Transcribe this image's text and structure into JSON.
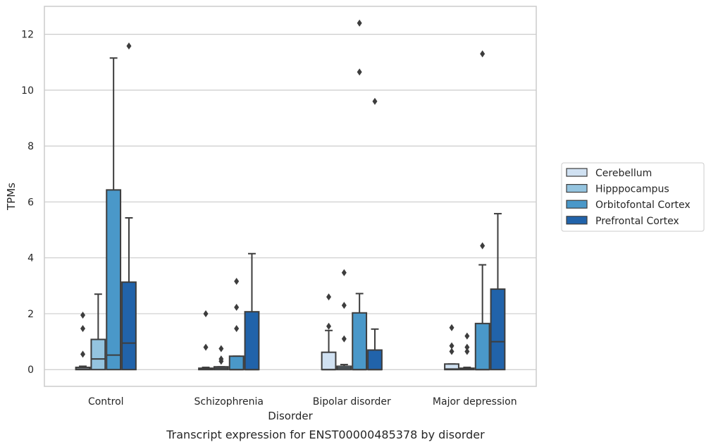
{
  "chart_data": {
    "type": "box",
    "title": "",
    "caption": "Transcript expression for ENST00000485378 by disorder",
    "xlabel": "Disorder",
    "ylabel": "TPMs",
    "ylim": [
      -0.6,
      13
    ],
    "yticks": [
      0,
      2,
      4,
      6,
      8,
      10,
      12
    ],
    "grid": "horizontal",
    "legend_position": "right",
    "categories": [
      "Control",
      "Schizophrenia",
      "Bipolar disorder",
      "Major depression"
    ],
    "series": [
      {
        "name": "Cerebellum",
        "color": "#d0e1f2",
        "boxes": [
          {
            "q1": 0,
            "median": 0.02,
            "q3": 0.08,
            "whisker_low": 0,
            "whisker_high": 0.12,
            "outliers": [
              0.55,
              1.47,
              1.95
            ]
          },
          {
            "q1": 0,
            "median": 0.01,
            "q3": 0.05,
            "whisker_low": 0,
            "whisker_high": 0.08,
            "outliers": [
              0.8,
              2.0
            ]
          },
          {
            "q1": 0,
            "median": 0.0,
            "q3": 0.62,
            "whisker_low": 0,
            "whisker_high": 1.4,
            "outliers": [
              1.55,
              2.6
            ]
          },
          {
            "q1": 0,
            "median": 0.02,
            "q3": 0.2,
            "whisker_low": 0,
            "whisker_high": 0.2,
            "outliers": [
              0.65,
              0.85,
              1.5
            ]
          }
        ]
      },
      {
        "name": "Hipppocampus",
        "color": "#94c4df",
        "boxes": [
          {
            "q1": 0,
            "median": 0.38,
            "q3": 1.08,
            "whisker_low": 0,
            "whisker_high": 2.7,
            "outliers": []
          },
          {
            "q1": 0,
            "median": 0.05,
            "q3": 0.1,
            "whisker_low": 0,
            "whisker_high": 0.1,
            "outliers": [
              0.3,
              0.38,
              0.75
            ]
          },
          {
            "q1": 0,
            "median": 0.06,
            "q3": 0.12,
            "whisker_low": 0,
            "whisker_high": 0.18,
            "outliers": [
              1.1,
              2.3,
              3.47
            ]
          },
          {
            "q1": 0,
            "median": 0.02,
            "q3": 0.05,
            "whisker_low": 0,
            "whisker_high": 0.08,
            "outliers": [
              0.65,
              0.8,
              1.2
            ]
          }
        ]
      },
      {
        "name": "Orbitofontal Cortex",
        "color": "#4a98c9",
        "boxes": [
          {
            "q1": 0,
            "median": 0.52,
            "q3": 6.43,
            "whisker_low": 0,
            "whisker_high": 11.15,
            "outliers": []
          },
          {
            "q1": 0,
            "median": 0.0,
            "q3": 0.48,
            "whisker_low": 0,
            "whisker_high": 0.48,
            "outliers": [
              1.47,
              2.23,
              3.16
            ]
          },
          {
            "q1": 0,
            "median": 0.0,
            "q3": 2.03,
            "whisker_low": 0,
            "whisker_high": 2.72,
            "outliers": [
              10.65,
              12.4
            ]
          },
          {
            "q1": 0,
            "median": 0.0,
            "q3": 1.65,
            "whisker_low": 0,
            "whisker_high": 3.75,
            "outliers": [
              4.43,
              11.3
            ]
          }
        ]
      },
      {
        "name": "Prefrontal Cortex",
        "color": "#2163aa",
        "boxes": [
          {
            "q1": 0,
            "median": 0.95,
            "q3": 3.13,
            "whisker_low": 0,
            "whisker_high": 5.43,
            "outliers": [
              11.58
            ]
          },
          {
            "q1": 0,
            "median": 0.0,
            "q3": 2.07,
            "whisker_low": 0,
            "whisker_high": 4.15,
            "outliers": []
          },
          {
            "q1": 0,
            "median": 0.0,
            "q3": 0.7,
            "whisker_low": 0,
            "whisker_high": 1.45,
            "outliers": [
              9.6
            ]
          },
          {
            "q1": 0,
            "median": 1.0,
            "q3": 2.88,
            "whisker_low": 0,
            "whisker_high": 5.58,
            "outliers": []
          }
        ]
      }
    ]
  }
}
